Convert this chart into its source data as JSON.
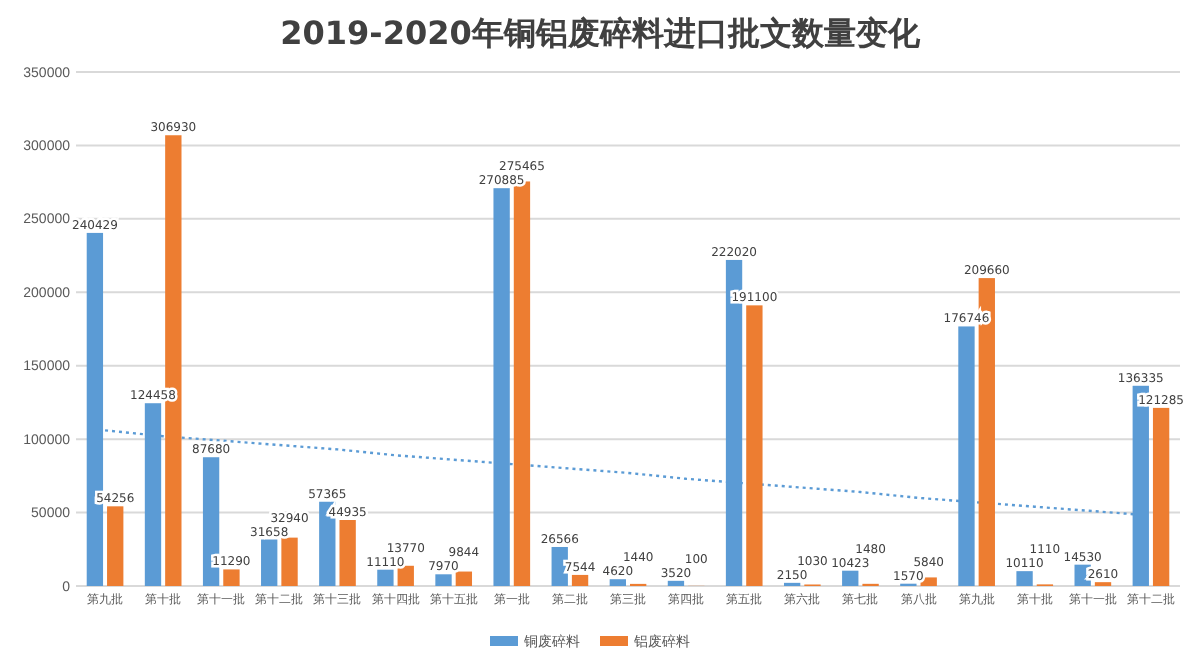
{
  "chart_data": {
    "type": "bar",
    "title": "2019-2020年铜铝废碎料进口批文数量变化",
    "categories": [
      "第九批",
      "第十批",
      "第十一批",
      "第十二批",
      "第十三批",
      "第十四批",
      "第十五批",
      "第一批",
      "第二批",
      "第三批",
      "第四批",
      "第五批",
      "第六批",
      "第七批",
      "第八批",
      "第九批",
      "第十批",
      "第十一批",
      "第十二批"
    ],
    "series": [
      {
        "name": "铜废碎料",
        "color": "#5b9bd5",
        "values": [
          240429,
          124458,
          87680,
          31658,
          57365,
          11110,
          7970,
          270885,
          26566,
          4620,
          3520,
          222020,
          2150,
          10423,
          1570,
          176746,
          10110,
          14530,
          136335
        ],
        "value_labels": [
          "240429",
          "124458",
          "87680",
          "31658",
          "57365",
          "11110",
          "7970",
          "270885",
          "26566",
          "4620",
          "3520",
          "222020",
          "2150",
          "10423",
          "1570",
          "176746",
          "10110",
          "14530",
          "136335"
        ]
      },
      {
        "name": "铝废碎料",
        "color": "#ed7d31",
        "values": [
          54256,
          306930,
          11290,
          32940,
          44935,
          13770,
          9844,
          275465,
          7544,
          1440,
          100,
          191100,
          1030,
          1480,
          5840,
          209660,
          1110,
          2610,
          121285
        ],
        "value_labels": [
          "54256",
          "306930",
          "11290",
          "32940",
          "44935",
          "13770",
          "9844",
          "275465",
          "7544",
          "1440",
          "100",
          "191100",
          "1030",
          "1480",
          "5840",
          "209660",
          "1110",
          "2610",
          "121285"
        ]
      },
      {
        "type": "line",
        "color": "#5b9bd5",
        "line_style": "dotted",
        "values": [
          106000,
          102000,
          99000,
          96000,
          93000,
          89000,
          86000,
          83000,
          80000,
          77000,
          73000,
          70000,
          67000,
          64000,
          60000,
          57000,
          54000,
          51000,
          48000
        ]
      }
    ],
    "ylim": [
      0,
      350000
    ],
    "yticks": [
      0,
      50000,
      100000,
      150000,
      200000,
      250000,
      300000,
      350000
    ],
    "grid": "y",
    "legend": "bottom"
  }
}
